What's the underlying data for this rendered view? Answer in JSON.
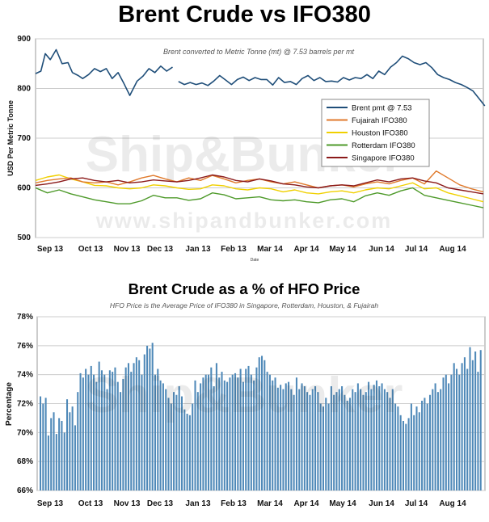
{
  "page": {
    "title": "Brent Crude vs IFO380",
    "watermark": "Ship&Bunker",
    "watermark_url": "www.shipandbunker.com"
  },
  "colors": {
    "brent": "#1f4e79",
    "fujairah": "#e07a2c",
    "houston": "#f0d000",
    "rotterdam": "#4e9a2a",
    "singapore": "#8b1a1a",
    "bars": "#4f89b8",
    "grid": "#cccccc"
  },
  "chart_data": [
    {
      "type": "line",
      "title": "Brent Crude vs IFO380",
      "subtitle": "Brent converted to Metric Tonne (mt) @ 7.53 barrels per mt",
      "xlabel": "Date",
      "ylabel": "USD Per Metric Tonne",
      "ylim": [
        500,
        900
      ],
      "yticks": [
        500,
        600,
        700,
        800,
        900
      ],
      "x_tick_labels": [
        "Sep 13",
        "Oct 13",
        "Nov 13",
        "Dec 13",
        "Jan 13",
        "Feb 13",
        "Mar 14",
        "Apr 14",
        "May 14",
        "Jun 14",
        "Jul 14",
        "Aug 14"
      ],
      "grid": true,
      "legend_position": "right",
      "series": [
        {
          "name": "Brent pmt @ 7.53",
          "color_key": "brent",
          "segments": [
            {
              "x": [
                0.0,
                1.8,
                3.3,
                5.0,
                7.0,
                9.0,
                11.0,
                12.5,
                14.5,
                16.0,
                18.0,
                20.0,
                22.0,
                24.0,
                26.0,
                28.0,
                30.0,
                32.0,
                34.5,
                36.5,
                38.5,
                40.5,
                42.5,
                44.5,
                46.5
              ],
              "y": [
                830,
                835,
                870,
                858,
                878,
                850,
                852,
                832,
                826,
                820,
                828,
                840,
                834,
                840,
                820,
                832,
                810,
                786,
                815,
                825,
                840,
                832,
                845,
                835,
                843
              ]
            },
            {
              "x": [
                48.5,
                50.5,
                52.5,
                54.5,
                56.5,
                58.5,
                60.5,
                62.5,
                64.5,
                66.5,
                68.5,
                70.5,
                72.5,
                74.5,
                76.5,
                78.5,
                80.5,
                82.5,
                84.5,
                86.5,
                88.5,
                90.5,
                92.5,
                94.5,
                96.5,
                98.5,
                100.5,
                102.5,
                104.5,
                106.5,
                108.5,
                110.5,
                112.5,
                114.5,
                116.5,
                118.5,
                120.5,
                122.5,
                124.5,
                126.5,
                128.5,
                130.5,
                132.5,
                134.5,
                136.5,
                138.5,
                140.5,
                142.5,
                144.5,
                146.5,
                148.5,
                150.5,
                152.5
              ],
              "y": [
                814,
                808,
                812,
                808,
                811,
                806,
                815,
                826,
                817,
                808,
                818,
                823,
                816,
                822,
                818,
                818,
                807,
                822,
                812,
                814,
                808,
                820,
                826,
                816,
                822,
                814,
                815,
                813,
                822,
                817,
                822,
                820,
                828,
                820,
                835,
                828,
                843,
                852,
                865,
                860,
                852,
                848,
                852,
                842,
                828,
                822,
                818,
                812,
                808,
                802,
                795,
                780,
                765
              ]
            }
          ]
        },
        {
          "name": "Fujairah IFO380",
          "color_key": "fujairah",
          "x": [
            0,
            4,
            8,
            12,
            16,
            20,
            24,
            28,
            32,
            36,
            40,
            44,
            48,
            52,
            56,
            60,
            64,
            68,
            72,
            76,
            80,
            84,
            88,
            92,
            96,
            100,
            104,
            108,
            112,
            116,
            120,
            124,
            128,
            132,
            136,
            140,
            144,
            148,
            152
          ],
          "y": [
            610,
            615,
            618,
            620,
            612,
            610,
            612,
            606,
            612,
            620,
            625,
            618,
            612,
            620,
            615,
            625,
            618,
            610,
            615,
            618,
            612,
            608,
            612,
            606,
            600,
            604,
            606,
            602,
            608,
            612,
            608,
            615,
            620,
            608,
            634,
            620,
            606,
            598,
            592
          ]
        },
        {
          "name": "Houston IFO380",
          "color_key": "houston",
          "x": [
            0,
            4,
            8,
            12,
            16,
            20,
            24,
            28,
            32,
            36,
            40,
            44,
            48,
            52,
            56,
            60,
            64,
            68,
            72,
            76,
            80,
            84,
            88,
            92,
            96,
            100,
            104,
            108,
            112,
            116,
            120,
            124,
            128,
            132,
            136,
            140,
            144,
            148,
            152
          ],
          "y": [
            615,
            622,
            626,
            618,
            612,
            605,
            604,
            600,
            598,
            600,
            606,
            604,
            600,
            597,
            598,
            606,
            604,
            598,
            596,
            600,
            598,
            592,
            596,
            590,
            588,
            592,
            594,
            590,
            596,
            600,
            598,
            604,
            610,
            598,
            600,
            590,
            584,
            578,
            572
          ]
        },
        {
          "name": "Rotterdam IFO380",
          "color_key": "rotterdam",
          "x": [
            0,
            4,
            8,
            12,
            16,
            20,
            24,
            28,
            32,
            36,
            40,
            44,
            48,
            52,
            56,
            60,
            64,
            68,
            72,
            76,
            80,
            84,
            88,
            92,
            96,
            100,
            104,
            108,
            112,
            116,
            120,
            124,
            128,
            132,
            136,
            140,
            144,
            148,
            152
          ],
          "y": [
            600,
            590,
            596,
            588,
            582,
            576,
            572,
            568,
            568,
            574,
            585,
            580,
            580,
            575,
            578,
            590,
            586,
            578,
            580,
            582,
            576,
            574,
            576,
            572,
            570,
            576,
            578,
            572,
            584,
            590,
            585,
            594,
            600,
            585,
            580,
            575,
            570,
            565,
            560
          ]
        },
        {
          "name": "Singapore IFO380",
          "color_key": "singapore",
          "x": [
            0,
            4,
            8,
            12,
            16,
            20,
            24,
            28,
            32,
            36,
            40,
            44,
            48,
            52,
            56,
            60,
            64,
            68,
            72,
            76,
            80,
            84,
            88,
            92,
            96,
            100,
            104,
            108,
            112,
            116,
            120,
            124,
            128,
            132,
            136,
            140,
            144,
            148,
            152
          ],
          "y": [
            605,
            608,
            612,
            618,
            620,
            615,
            612,
            615,
            610,
            612,
            616,
            614,
            612,
            615,
            620,
            626,
            622,
            615,
            612,
            618,
            614,
            608,
            606,
            602,
            600,
            604,
            606,
            604,
            610,
            616,
            612,
            618,
            620,
            614,
            610,
            600,
            596,
            592,
            588
          ]
        }
      ]
    },
    {
      "type": "bar",
      "title": "Brent Crude as a % of HFO Price",
      "subtitle": "HFO Price is the Average Price of IFO380 in Singapore, Rotterdam, Houston, & Fujairah",
      "ylabel": "Percentage",
      "ylim": [
        66,
        78
      ],
      "ytick_labels": [
        "66%",
        "68%",
        "70%",
        "72%",
        "74%",
        "76%",
        "78%"
      ],
      "x_tick_labels": [
        "Sep 13",
        "Oct 13",
        "Nov 13",
        "Dec 13",
        "Jan 13",
        "Feb 13",
        "Mar 14",
        "Apr 14",
        "May 14",
        "Jun 14",
        "Jul 14",
        "Aug 14"
      ],
      "grid": true,
      "color_key": "bars",
      "values": [
        72.5,
        72.0,
        72.4,
        69.8,
        71.0,
        71.4,
        69.9,
        71.0,
        70.8,
        70.0,
        72.3,
        71.4,
        71.8,
        70.5,
        72.8,
        74.1,
        73.8,
        74.4,
        74.0,
        74.6,
        74.0,
        73.5,
        74.9,
        74.3,
        74.0,
        73.0,
        74.3,
        74.2,
        74.5,
        73.5,
        72.8,
        73.7,
        74.5,
        74.8,
        74.2,
        74.8,
        75.2,
        75.0,
        74.0,
        75.4,
        76.0,
        75.8,
        76.2,
        74.0,
        74.4,
        73.6,
        73.4,
        73.0,
        72.4,
        72.0,
        72.8,
        72.6,
        73.2,
        72.5,
        71.6,
        71.3,
        71.2,
        72.0,
        73.6,
        72.8,
        73.4,
        73.8,
        74.0,
        74.0,
        74.5,
        73.2,
        74.8,
        73.8,
        74.2,
        73.6,
        73.5,
        73.8,
        74.0,
        74.1,
        73.8,
        74.4,
        73.5,
        74.4,
        74.6,
        74.0,
        73.6,
        74.5,
        75.2,
        75.3,
        75.0,
        74.2,
        74.0,
        73.6,
        73.8,
        73.1,
        73.3,
        73.0,
        73.4,
        73.5,
        73.0,
        72.6,
        73.8,
        73.0,
        73.4,
        73.2,
        72.8,
        72.6,
        73.0,
        73.2,
        72.8,
        72.0,
        71.8,
        72.4,
        72.0,
        73.2,
        72.6,
        72.8,
        73.0,
        73.2,
        72.6,
        72.2,
        72.4,
        73.0,
        72.8,
        73.4,
        73.0,
        72.6,
        72.8,
        73.5,
        73.0,
        73.3,
        73.6,
        73.2,
        73.4,
        73.0,
        72.8,
        72.4,
        73.0,
        72.0,
        71.8,
        71.2,
        70.8,
        70.6,
        71.0,
        72.0,
        71.2,
        71.8,
        71.4,
        72.2,
        72.4,
        72.0,
        72.6,
        73.0,
        73.4,
        72.8,
        73.0,
        73.8,
        74.0,
        73.4,
        74.0,
        74.8,
        74.4,
        74.0,
        74.8,
        75.2,
        74.4,
        75.9,
        75.0,
        75.6,
        74.2,
        75.7
      ]
    }
  ]
}
